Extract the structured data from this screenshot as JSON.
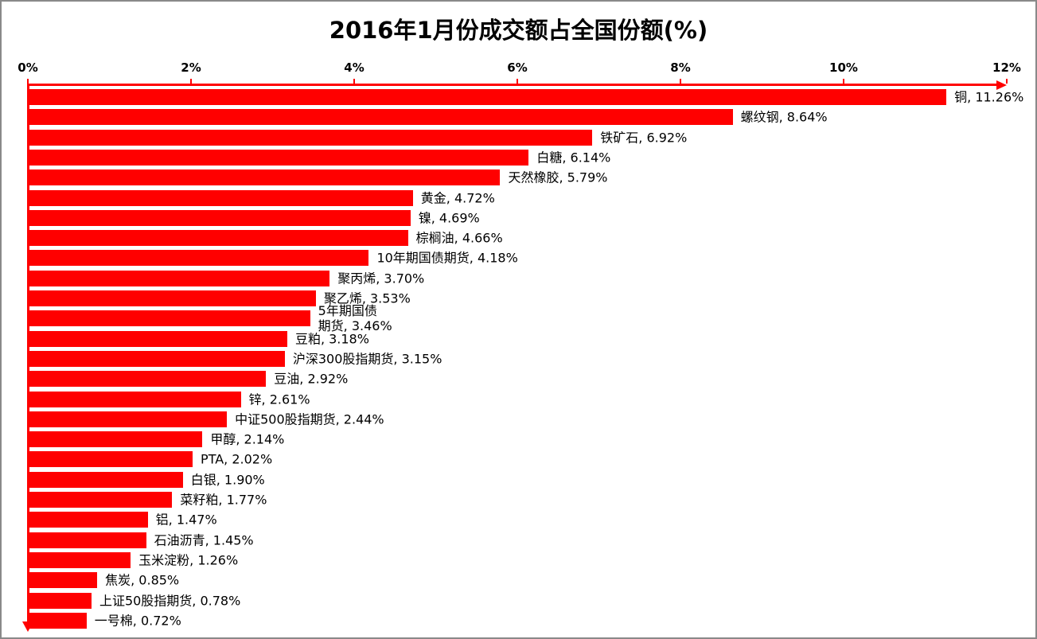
{
  "frame": {
    "background": "#FFFFFF",
    "border_color": "#898989"
  },
  "chart_data": {
    "type": "bar",
    "orientation": "horizontal",
    "title": "2016年1月份成交额占全国份额(%)",
    "xlabel": "",
    "ylabel": "",
    "xlim": [
      0,
      12
    ],
    "x_ticks": [
      "0%",
      "2%",
      "4%",
      "6%",
      "8%",
      "10%",
      "12%"
    ],
    "grid": false,
    "legend": false,
    "bar_color": "#FF0000",
    "axis_color": "#FF0000",
    "title_color": "#000000",
    "label_color": "#000000",
    "categories": [
      "铜",
      "螺纹钢",
      "铁矿石",
      "白糖",
      "天然橡胶",
      "黄金",
      "镍",
      "棕榈油",
      "10年期国债期货",
      "聚丙烯",
      "聚乙烯",
      "5年期国债期货",
      "豆粕",
      "沪深300股指期货",
      "豆油",
      "锌",
      "中证500股指期货",
      "甲醇",
      "PTA",
      "白银",
      "菜籽粕",
      "铝",
      "石油沥青",
      "玉米淀粉",
      "焦炭",
      "上证50股指期货",
      "一号棉"
    ],
    "values": [
      11.26,
      8.64,
      6.92,
      6.14,
      5.79,
      4.72,
      4.69,
      4.66,
      4.18,
      3.7,
      3.53,
      3.46,
      3.18,
      3.15,
      2.92,
      2.61,
      2.44,
      2.14,
      2.02,
      1.9,
      1.77,
      1.47,
      1.45,
      1.26,
      0.85,
      0.78,
      0.72
    ],
    "data_labels": [
      "铜, 11.26%",
      "螺纹钢, 8.64%",
      "铁矿石, 6.92%",
      "白糖, 6.14%",
      "天然橡胶, 5.79%",
      "黄金, 4.72%",
      "镍, 4.69%",
      "棕榈油, 4.66%",
      "10年期国债期货, 4.18%",
      "聚丙烯, 3.70%",
      "聚乙烯, 3.53%",
      "5年期国债\n期货, 3.46%",
      "豆粕, 3.18%",
      "沪深300股指期货, 3.15%",
      "豆油, 2.92%",
      "锌, 2.61%",
      "中证500股指期货, 2.44%",
      "甲醇, 2.14%",
      "PTA, 2.02%",
      "白银, 1.90%",
      "菜籽粕, 1.77%",
      "铝, 1.47%",
      "石油沥青, 1.45%",
      "玉米淀粉, 1.26%",
      "焦炭, 0.85%",
      "上证50股指期货, 0.78%",
      "一号棉, 0.72%"
    ]
  }
}
